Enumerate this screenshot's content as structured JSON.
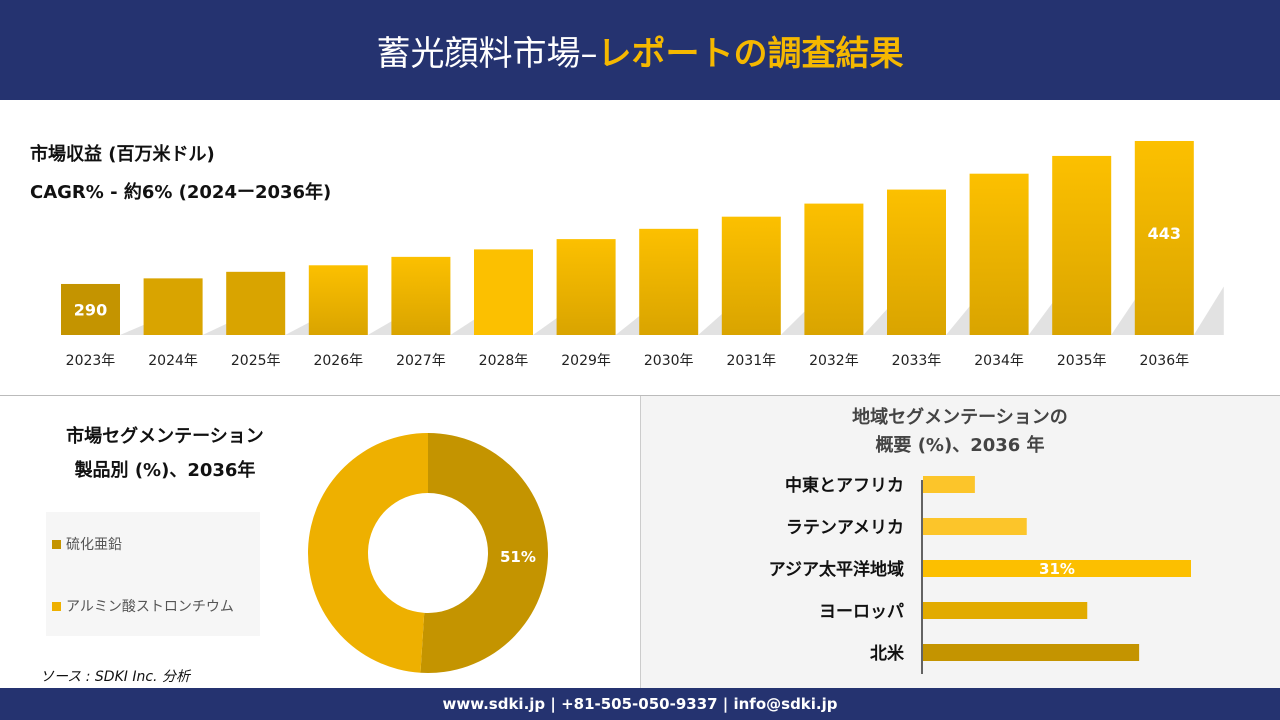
{
  "header": {
    "title_main": "蓄光顔料市場–",
    "title_accent": "レポートの調査結果"
  },
  "footer": {
    "contact": "www.sdki.jp | +81-505-050-9337 | info@sdki.jp"
  },
  "source": "ソース : SDKI Inc. 分析",
  "colors": {
    "navy": "#253370",
    "gold": "#f5b800",
    "dark_gold": "#c49400"
  },
  "chart_data": [
    {
      "type": "bar",
      "title": "市場収益 (百万米ドル)",
      "subtitle": "CAGR% - 約6% (2024ー2036年)",
      "categories": [
        "2023年",
        "2024年",
        "2025年",
        "2026年",
        "2027年",
        "2028年",
        "2029年",
        "2030年",
        "2031年",
        "2032年",
        "2033年",
        "2034年",
        "2035年",
        "2036年"
      ],
      "values": [
        290,
        296,
        303,
        310,
        319,
        327,
        338,
        349,
        362,
        376,
        391,
        408,
        427,
        443
      ],
      "data_labels": {
        "0": "290",
        "13": "443"
      }
    },
    {
      "type": "pie",
      "title_line1": "市場セグメンテーション",
      "title_line2": "製品別 (%)、2036年",
      "slices": [
        {
          "name": "硫化亜鉛",
          "value": 51,
          "label": "51%",
          "color": "#c49400"
        },
        {
          "name": "アルミン酸ストロンチウム",
          "value": 49,
          "color": "#eeb000"
        }
      ]
    },
    {
      "type": "bar",
      "orientation": "horizontal",
      "title_line1": "地域セグメンテーションの",
      "title_line2": "概要 (%)、2036 年",
      "categories": [
        "中東とアフリカ",
        "ラテンアメリカ",
        "アジア太平洋地域",
        "ヨーロッパ",
        "北米"
      ],
      "values": [
        6,
        12,
        31,
        19,
        25
      ],
      "colors": [
        "#fcc52a",
        "#fcc52a",
        "#fcbf00",
        "#e2ab00",
        "#c49400"
      ],
      "data_labels": {
        "2": "31%"
      }
    }
  ]
}
